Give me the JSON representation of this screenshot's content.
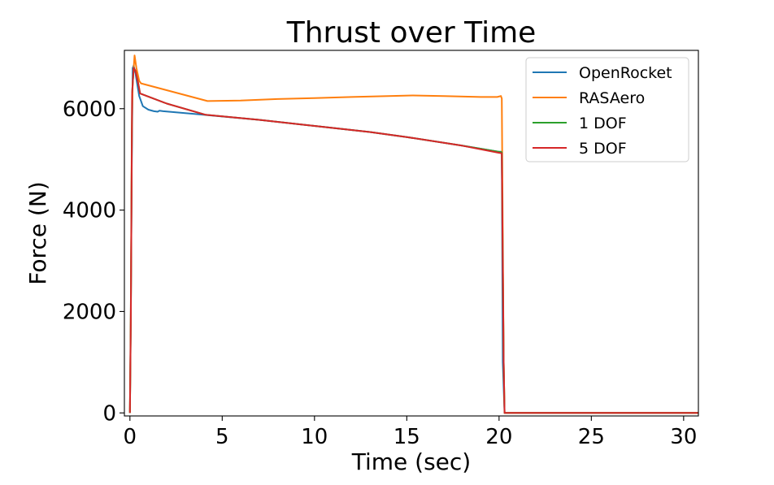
{
  "chart_data": {
    "type": "line",
    "title": "Thrust over Time",
    "xlabel": "Time (sec)",
    "ylabel": "Force (N)",
    "xlim": [
      -0.3,
      30.8
    ],
    "ylim": [
      -60,
      7150
    ],
    "xticks": [
      0,
      5,
      10,
      15,
      20,
      25,
      30
    ],
    "yticks": [
      0,
      2000,
      4000,
      6000
    ],
    "grid": false,
    "legend_position": "top-right",
    "series": [
      {
        "name": "OpenRocket",
        "color": "#1f77b4",
        "x": [
          0,
          0.05,
          0.1,
          0.15,
          0.2,
          0.3,
          0.5,
          0.7,
          1.0,
          1.3,
          1.5,
          1.6,
          1.8,
          4.0,
          7.0,
          10.0,
          13.0,
          15.0,
          18.0,
          20.0,
          20.15,
          20.2,
          20.3,
          30.8
        ],
        "y": [
          0,
          2000,
          5000,
          6800,
          6850,
          6700,
          6250,
          6050,
          5980,
          5950,
          5940,
          5960,
          5950,
          5880,
          5780,
          5660,
          5540,
          5440,
          5270,
          5150,
          5150,
          1000,
          0,
          0
        ]
      },
      {
        "name": "RASAero",
        "color": "#ff7f0e",
        "x": [
          0,
          0.05,
          0.1,
          0.15,
          0.25,
          0.35,
          0.5,
          0.6,
          4.2,
          6.0,
          8.0,
          10.0,
          12.0,
          14.0,
          15.3,
          17.0,
          19.0,
          19.9,
          20.1,
          20.15,
          20.25,
          20.3,
          30.8
        ],
        "y": [
          0,
          2000,
          5500,
          6500,
          7050,
          6800,
          6550,
          6500,
          6150,
          6160,
          6190,
          6210,
          6230,
          6250,
          6260,
          6250,
          6230,
          6230,
          6250,
          6200,
          1000,
          0,
          0
        ]
      },
      {
        "name": "1 DOF",
        "color": "#2ca02c",
        "x": [
          0,
          0.05,
          0.12,
          0.2,
          0.3,
          0.45,
          0.55,
          2.0,
          4.1,
          7.0,
          10.0,
          13.0,
          15.0,
          18.0,
          20.0,
          20.15,
          20.25,
          20.3,
          30.8
        ],
        "y": [
          0,
          1800,
          6300,
          6800,
          6750,
          6500,
          6300,
          6100,
          5880,
          5780,
          5660,
          5540,
          5440,
          5270,
          5150,
          5140,
          1000,
          0,
          0
        ]
      },
      {
        "name": "5 DOF",
        "color": "#d62728",
        "x": [
          0,
          0.05,
          0.12,
          0.2,
          0.3,
          0.45,
          0.55,
          2.0,
          4.1,
          7.0,
          10.0,
          13.0,
          15.0,
          18.0,
          20.0,
          20.15,
          20.25,
          20.3,
          30.8
        ],
        "y": [
          0,
          1800,
          6300,
          6800,
          6750,
          6500,
          6300,
          6100,
          5880,
          5780,
          5660,
          5540,
          5440,
          5270,
          5130,
          5120,
          1000,
          0,
          0
        ]
      }
    ]
  }
}
